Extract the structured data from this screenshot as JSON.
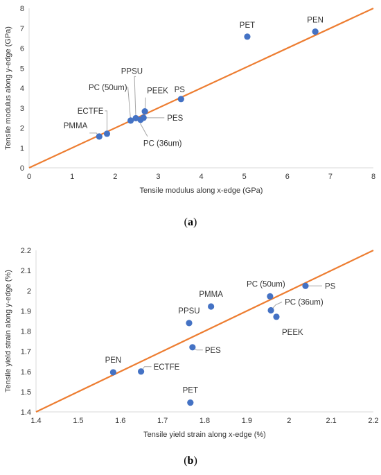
{
  "colors": {
    "point": "#4472C4",
    "trend": "#ED7D31",
    "axis": "#D9D9D9",
    "text": "#333333",
    "leader": "#A6A6A6"
  },
  "chart_data": [
    {
      "type": "scatter",
      "caption": "a",
      "xlabel": "Tensile modulus along x-edge (GPa)",
      "ylabel": "Tensile modulus along y-edge (GPa)",
      "xlim": [
        0,
        8
      ],
      "ylim": [
        0,
        8
      ],
      "xticks": [
        "0",
        "1",
        "2",
        "3",
        "4",
        "5",
        "6",
        "7",
        "8"
      ],
      "yticks": [
        "0",
        "1",
        "2",
        "3",
        "4",
        "5",
        "6",
        "7",
        "8"
      ],
      "grid": false,
      "reference_line": [
        [
          0,
          0
        ],
        [
          8,
          8
        ]
      ],
      "points": [
        {
          "label": "PMMA",
          "x": 1.63,
          "y": 1.57
        },
        {
          "label": "ECTFE",
          "x": 1.81,
          "y": 1.71
        },
        {
          "label": "PC (50um)",
          "x": 2.36,
          "y": 2.37
        },
        {
          "label": "PPSU",
          "x": 2.48,
          "y": 2.49
        },
        {
          "label": "PC (36um)",
          "x": 2.59,
          "y": 2.41
        },
        {
          "label": "PES",
          "x": 2.66,
          "y": 2.51
        },
        {
          "label": "PEEK",
          "x": 2.69,
          "y": 2.83
        },
        {
          "label": "PS",
          "x": 3.53,
          "y": 3.45
        },
        {
          "label": "PET",
          "x": 5.07,
          "y": 6.58
        },
        {
          "label": "PEN",
          "x": 6.65,
          "y": 6.83
        }
      ]
    },
    {
      "type": "scatter",
      "caption": "b",
      "xlabel": "Tensile yield strain along x-edge (%)",
      "ylabel": "Tensile yield strain along y-edge (%)",
      "xlim": [
        1.4,
        2.2
      ],
      "ylim": [
        1.4,
        2.2
      ],
      "xticks": [
        "1.4",
        "1.5",
        "1.6",
        "1.7",
        "1.8",
        "1.9",
        "2",
        "2.1",
        "2.2"
      ],
      "yticks": [
        "1.4",
        "1.5",
        "1.6",
        "1.7",
        "1.8",
        "1.9",
        "2",
        "2.1",
        "2.2"
      ],
      "grid": false,
      "reference_line": [
        [
          1.4,
          1.4
        ],
        [
          2.2,
          2.2
        ]
      ],
      "points": [
        {
          "label": "PEN",
          "x": 1.583,
          "y": 1.596
        },
        {
          "label": "ECTFE",
          "x": 1.649,
          "y": 1.6
        },
        {
          "label": "PPSU",
          "x": 1.763,
          "y": 1.84
        },
        {
          "label": "PET",
          "x": 1.766,
          "y": 1.446
        },
        {
          "label": "PES",
          "x": 1.771,
          "y": 1.72
        },
        {
          "label": "PMMA",
          "x": 1.815,
          "y": 1.922
        },
        {
          "label": "PC (50um)",
          "x": 1.955,
          "y": 1.972
        },
        {
          "label": "PC (36um)",
          "x": 1.957,
          "y": 1.903
        },
        {
          "label": "PEEK",
          "x": 1.97,
          "y": 1.871
        },
        {
          "label": "PS",
          "x": 2.039,
          "y": 2.024
        }
      ]
    }
  ]
}
